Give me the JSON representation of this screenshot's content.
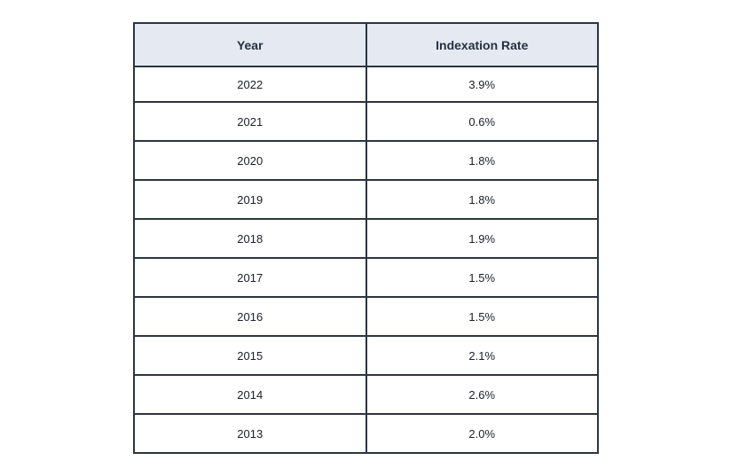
{
  "table": {
    "headers": [
      "Year",
      "Indexation Rate"
    ],
    "rows": [
      [
        "2022",
        "3.9%"
      ],
      [
        "2021",
        "0.6%"
      ],
      [
        "2020",
        "1.8%"
      ],
      [
        "2019",
        "1.8%"
      ],
      [
        "2018",
        "1.9%"
      ],
      [
        "2017",
        "1.5%"
      ],
      [
        "2016",
        "1.5%"
      ],
      [
        "2015",
        "2.1%"
      ],
      [
        "2014",
        "2.6%"
      ],
      [
        "2013",
        "2.0%"
      ]
    ]
  },
  "colors": {
    "header_bg": "#e5eaf2",
    "border": "#2b3440",
    "text": "#1f2430"
  }
}
